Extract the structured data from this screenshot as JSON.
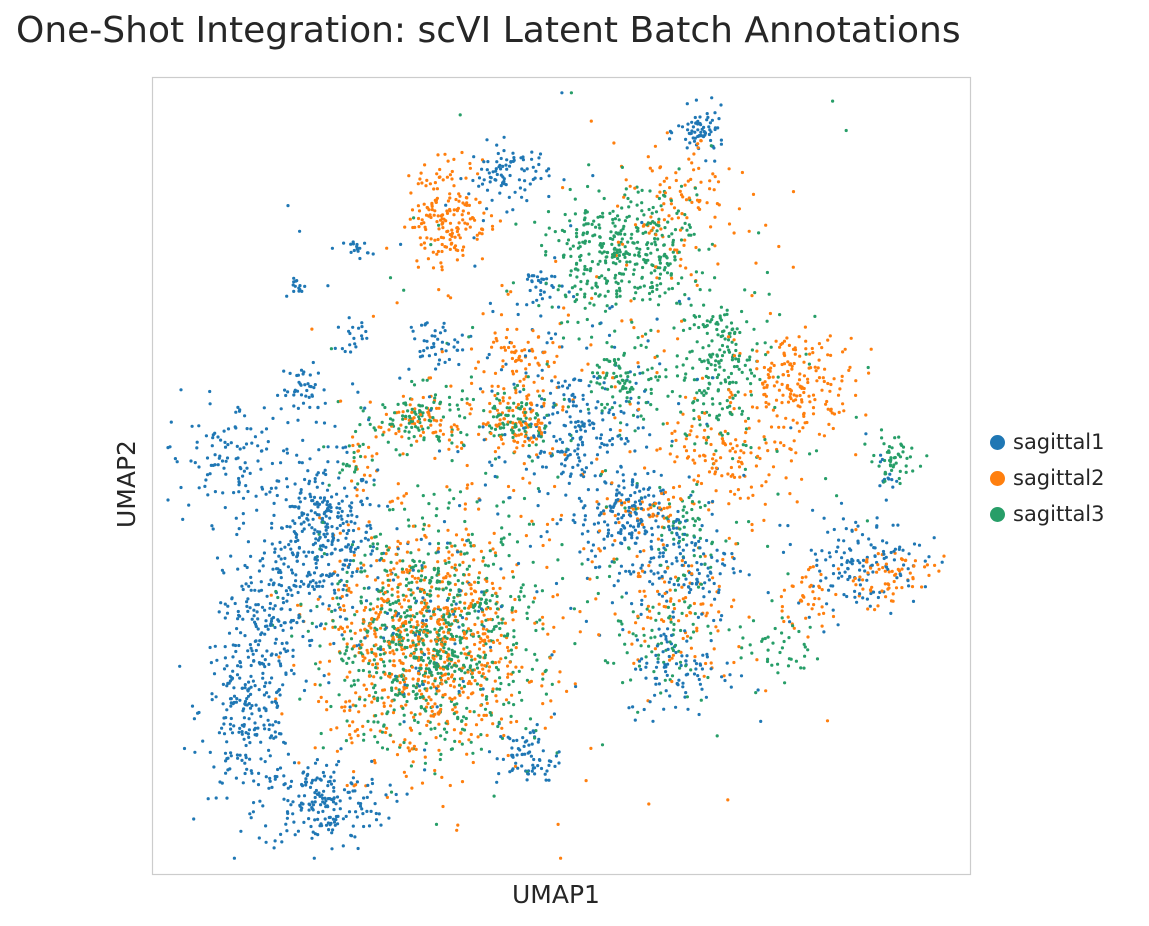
{
  "chart_data": {
    "type": "scatter",
    "title": "One-Shot Integration: scVI Latent Batch Annotations",
    "xlabel": "UMAP1",
    "ylabel": "UMAP2",
    "xlim": [
      0,
      100
    ],
    "ylim": [
      0,
      100
    ],
    "ticks": "none",
    "grid": false,
    "legend_position": "right",
    "series": [
      {
        "name": "sagittal1",
        "color": "#1f77b4",
        "clusters": [
          {
            "x": 20,
            "y": 42,
            "sx": 3.5,
            "sy": 5.0,
            "n": 340
          },
          {
            "x": 11,
            "y": 20,
            "sx": 3.0,
            "sy": 5.5,
            "n": 240
          },
          {
            "x": 20,
            "y": 8,
            "sx": 4.0,
            "sy": 3.0,
            "n": 200
          },
          {
            "x": 13,
            "y": 32,
            "sx": 2.5,
            "sy": 4.0,
            "n": 120
          },
          {
            "x": 9,
            "y": 52,
            "sx": 4.0,
            "sy": 4.0,
            "n": 120
          },
          {
            "x": 18,
            "y": 61,
            "sx": 1.5,
            "sy": 1.5,
            "n": 40
          },
          {
            "x": 17.5,
            "y": 74,
            "sx": 0.6,
            "sy": 0.6,
            "n": 14
          },
          {
            "x": 24.5,
            "y": 79,
            "sx": 0.8,
            "sy": 0.6,
            "n": 18
          },
          {
            "x": 24,
            "y": 68,
            "sx": 1.0,
            "sy": 1.0,
            "n": 20
          },
          {
            "x": 43.5,
            "y": 88.5,
            "sx": 2.5,
            "sy": 2.0,
            "n": 90
          },
          {
            "x": 47.5,
            "y": 74,
            "sx": 1.5,
            "sy": 1.5,
            "n": 35
          },
          {
            "x": 67.5,
            "y": 94,
            "sx": 1.5,
            "sy": 1.5,
            "n": 70
          },
          {
            "x": 52,
            "y": 56,
            "sx": 4.0,
            "sy": 4.0,
            "n": 180
          },
          {
            "x": 57.5,
            "y": 45,
            "sx": 2.5,
            "sy": 2.5,
            "n": 120
          },
          {
            "x": 64.5,
            "y": 39,
            "sx": 4.0,
            "sy": 4.0,
            "n": 160
          },
          {
            "x": 65,
            "y": 25,
            "sx": 3.5,
            "sy": 3.0,
            "n": 90
          },
          {
            "x": 87,
            "y": 39,
            "sx": 4.0,
            "sy": 3.0,
            "n": 140
          },
          {
            "x": 46,
            "y": 14,
            "sx": 2.0,
            "sy": 2.0,
            "n": 70
          },
          {
            "x": 34,
            "y": 67,
            "sx": 1.5,
            "sy": 1.5,
            "n": 40
          },
          {
            "x": 90,
            "y": 50,
            "sx": 1.0,
            "sy": 1.5,
            "n": 14
          },
          {
            "x": 32,
            "y": 30,
            "sx": 6.0,
            "sy": 7.0,
            "n": 80
          },
          {
            "x": 45,
            "y": 55,
            "sx": 14.0,
            "sy": 14.0,
            "n": 160
          }
        ]
      },
      {
        "name": "sagittal2",
        "color": "#ff7f0e",
        "clusters": [
          {
            "x": 36,
            "y": 83.5,
            "sx": 2.5,
            "sy": 3.5,
            "n": 180
          },
          {
            "x": 33,
            "y": 28,
            "sx": 6.5,
            "sy": 7.5,
            "n": 750
          },
          {
            "x": 44.5,
            "y": 57,
            "sx": 2.5,
            "sy": 3.0,
            "n": 100
          },
          {
            "x": 33,
            "y": 57,
            "sx": 3.0,
            "sy": 2.0,
            "n": 70
          },
          {
            "x": 60,
            "y": 45,
            "sx": 2.0,
            "sy": 1.5,
            "n": 40
          },
          {
            "x": 65,
            "y": 84,
            "sx": 3.5,
            "sy": 4.0,
            "n": 110
          },
          {
            "x": 80,
            "y": 62,
            "sx": 3.5,
            "sy": 3.0,
            "n": 170
          },
          {
            "x": 71,
            "y": 53,
            "sx": 4.0,
            "sy": 4.0,
            "n": 130
          },
          {
            "x": 64,
            "y": 33,
            "sx": 4.0,
            "sy": 4.0,
            "n": 90
          },
          {
            "x": 90.5,
            "y": 37,
            "sx": 3.0,
            "sy": 2.0,
            "n": 70
          },
          {
            "x": 80,
            "y": 34,
            "sx": 2.0,
            "sy": 2.0,
            "n": 40
          },
          {
            "x": 44,
            "y": 65,
            "sx": 2.5,
            "sy": 2.0,
            "n": 50
          },
          {
            "x": 25,
            "y": 51,
            "sx": 1.0,
            "sy": 1.5,
            "n": 20
          },
          {
            "x": 55,
            "y": 55,
            "sx": 15.0,
            "sy": 18.0,
            "n": 180
          }
        ]
      },
      {
        "name": "sagittal3",
        "color": "#279e68",
        "clusters": [
          {
            "x": 34,
            "y": 29,
            "sx": 6.5,
            "sy": 7.0,
            "n": 750
          },
          {
            "x": 55,
            "y": 78,
            "sx": 3.5,
            "sy": 3.5,
            "n": 200
          },
          {
            "x": 61,
            "y": 80,
            "sx": 3.0,
            "sy": 4.0,
            "n": 170
          },
          {
            "x": 69,
            "y": 67,
            "sx": 2.5,
            "sy": 3.0,
            "n": 100
          },
          {
            "x": 58,
            "y": 62,
            "sx": 2.0,
            "sy": 2.5,
            "n": 90
          },
          {
            "x": 32,
            "y": 57.5,
            "sx": 3.0,
            "sy": 2.0,
            "n": 100
          },
          {
            "x": 44,
            "y": 57,
            "sx": 2.5,
            "sy": 2.0,
            "n": 80
          },
          {
            "x": 70,
            "y": 61,
            "sx": 3.0,
            "sy": 3.5,
            "n": 100
          },
          {
            "x": 65.5,
            "y": 42,
            "sx": 2.5,
            "sy": 3.5,
            "n": 60
          },
          {
            "x": 91.5,
            "y": 52,
            "sx": 1.5,
            "sy": 1.5,
            "n": 50
          },
          {
            "x": 62,
            "y": 28,
            "sx": 3.5,
            "sy": 3.0,
            "n": 60
          },
          {
            "x": 77,
            "y": 28,
            "sx": 2.5,
            "sy": 2.0,
            "n": 40
          },
          {
            "x": 24,
            "y": 52,
            "sx": 1.0,
            "sy": 1.5,
            "n": 18
          },
          {
            "x": 55,
            "y": 55,
            "sx": 15.0,
            "sy": 18.0,
            "n": 180
          }
        ]
      }
    ]
  }
}
